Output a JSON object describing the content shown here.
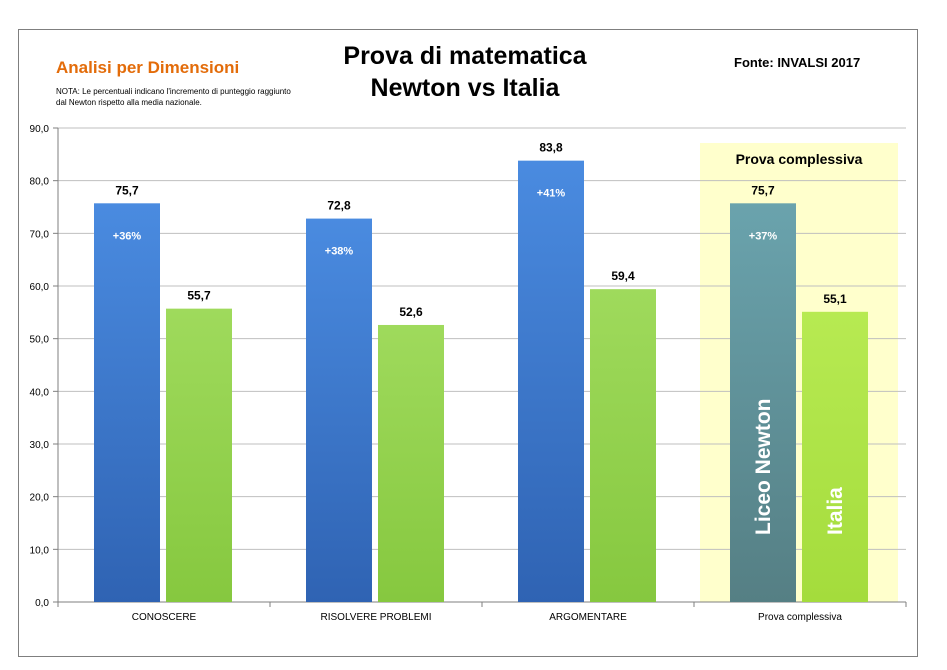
{
  "header": {
    "subtitle": "Analisi per Dimensioni",
    "note": "NOTA: Le percentuali indicano l'incremento di punteggio raggiunto dal Newton rispetto alla media nazionale.",
    "title_line1": "Prova di matematica",
    "title_line2": "Newton vs Italia",
    "source": "Fonte: INVALSI 2017"
  },
  "chart_data": {
    "type": "bar",
    "categories": [
      "CONOSCERE",
      "RISOLVERE PROBLEMI",
      "ARGOMENTARE",
      "Prova complessiva"
    ],
    "series": [
      {
        "name": "Liceo Newton",
        "values": [
          75.7,
          72.8,
          83.8,
          75.7
        ],
        "value_labels": [
          "75,7",
          "72,8",
          "83,8",
          "75,7"
        ],
        "increment_labels": [
          "+36%",
          "+38%",
          "+41%",
          "+37%"
        ]
      },
      {
        "name": "Italia",
        "values": [
          55.7,
          52.6,
          59.4,
          55.1
        ],
        "value_labels": [
          "55,7",
          "52,6",
          "59,4",
          "55,1"
        ]
      }
    ],
    "ylim": [
      0,
      90
    ],
    "yticks": [
      "0,0",
      "10,0",
      "20,0",
      "30,0",
      "40,0",
      "50,0",
      "60,0",
      "70,0",
      "80,0",
      "90,0"
    ],
    "grid": true,
    "highlight": {
      "category": "Prova complessiva",
      "label": "Prova complessiva",
      "color": "#ffffcc"
    },
    "colors": {
      "newton": "#3a78d0",
      "italia": "#92d050",
      "newton_highlight": "#5f8f94",
      "italia_highlight": "#aee44a",
      "grid": "#bfbfbf"
    }
  }
}
